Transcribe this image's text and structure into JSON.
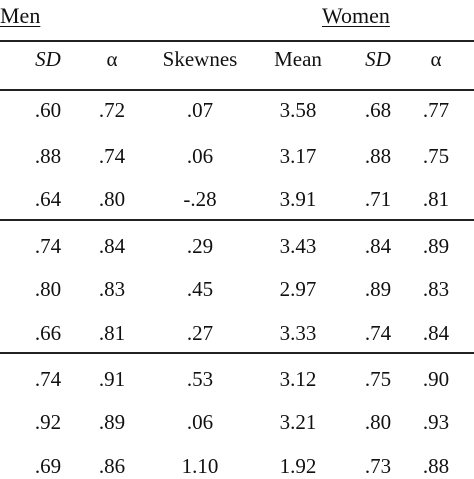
{
  "groups": {
    "men": "Men",
    "women": "Women"
  },
  "columns": [
    "SD",
    "α",
    "Skewnes",
    "Mean",
    "SD",
    "α"
  ],
  "rows": [
    [
      ".60",
      ".72",
      ".07",
      "3.58",
      ".68",
      ".77"
    ],
    [
      ".88",
      ".74",
      ".06",
      "3.17",
      ".88",
      ".75"
    ],
    [
      ".64",
      ".80",
      "-.28",
      "3.91",
      ".71",
      ".81"
    ],
    [
      ".74",
      ".84",
      ".29",
      "3.43",
      ".84",
      ".89"
    ],
    [
      ".80",
      ".83",
      ".45",
      "2.97",
      ".89",
      ".83"
    ],
    [
      ".66",
      ".81",
      ".27",
      "3.33",
      ".74",
      ".84"
    ],
    [
      ".74",
      ".91",
      ".53",
      "3.12",
      ".75",
      ".90"
    ],
    [
      ".92",
      ".89",
      ".06",
      "3.21",
      ".80",
      ".93"
    ],
    [
      ".69",
      ".86",
      "1.10",
      "1.92",
      ".73",
      ".88"
    ]
  ]
}
